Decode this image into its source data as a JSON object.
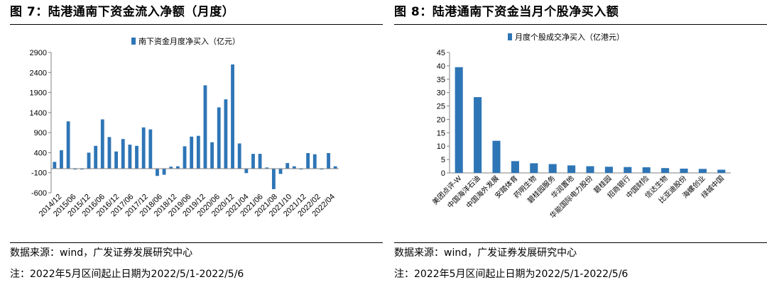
{
  "left": {
    "title": "图 7：陆港通南下资金流入净额（月度）",
    "source": "数据来源：wind，广发证券发展研究中心",
    "note": "注：2022年5月区间起止日期为2022/5/1-2022/5/6",
    "bar_color": "#2E75B6",
    "chart_data": {
      "type": "bar",
      "title": "",
      "legend": "南下资金月度净买入（亿元）",
      "legend_position": "top",
      "ylim": [
        -600,
        2900
      ],
      "yticks": [
        -600,
        -100,
        400,
        900,
        1400,
        1900,
        2400,
        2900
      ],
      "xtick_labels": [
        "2014/12",
        "2015/06",
        "2015/12",
        "2016/06",
        "2016/12",
        "2017/06",
        "2017/12",
        "2018/06",
        "2018/12",
        "2019/06",
        "2019/12",
        "2020/06",
        "2020/12",
        "2021/04",
        "2021/06",
        "2021/08",
        "2021/10",
        "2021/12",
        "2022/02",
        "2022/04"
      ],
      "values": [
        170,
        460,
        1180,
        -20,
        -20,
        400,
        570,
        1230,
        790,
        430,
        740,
        600,
        570,
        1030,
        980,
        -180,
        -150,
        50,
        60,
        560,
        800,
        820,
        2080,
        660,
        1530,
        1730,
        2600,
        630,
        -110,
        370,
        370,
        30,
        -510,
        -130,
        140,
        60,
        -20,
        390,
        360,
        -20,
        390,
        60
      ]
    }
  },
  "right": {
    "title": "图 8：陆港通南下资金当月个股净买入额",
    "source": "数据来源：wind，广发证券发展研究中心",
    "note": "注：2022年5月区间起止日期为2022/5/1-2022/5/6",
    "bar_color": "#2E75B6",
    "chart_data": {
      "type": "bar",
      "title": "",
      "legend": "月度个股成交净买入（亿港元）",
      "legend_position": "top",
      "ylim": [
        0,
        45
      ],
      "yticks": [
        0,
        5,
        10,
        15,
        20,
        25,
        30,
        35,
        40,
        45
      ],
      "categories": [
        "美团点评-W",
        "中国海洋石油",
        "中国海外发展",
        "安踏体育",
        "药明生物",
        "碧桂园服务",
        "华润置地",
        "华能国际电力股份",
        "碧桂园",
        "招商银行",
        "中国财险",
        "信达生物",
        "比亚迪股份",
        "海螺创业",
        "绿城中国"
      ],
      "values": [
        39.5,
        28.3,
        12.0,
        4.4,
        3.6,
        3.3,
        2.8,
        2.5,
        2.3,
        2.2,
        2.1,
        1.8,
        1.6,
        1.5,
        1.2
      ]
    }
  }
}
